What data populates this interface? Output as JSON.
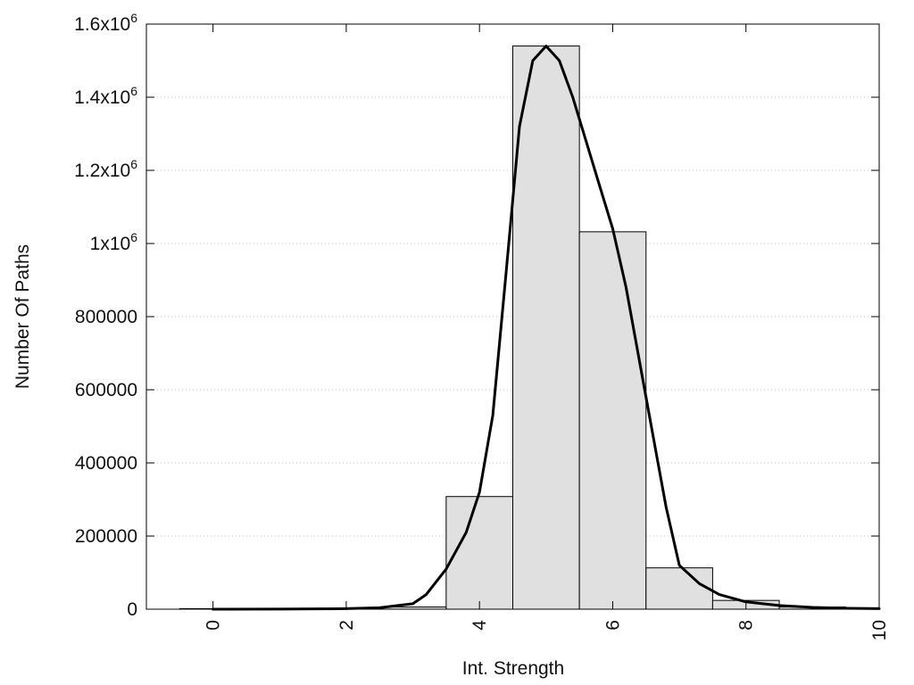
{
  "chart_data": {
    "type": "bar",
    "xlabel": "Int. Strength",
    "ylabel": "Number Of Paths",
    "xlim": [
      -1,
      10
    ],
    "ylim": [
      0,
      1600000
    ],
    "grid": true,
    "x_ticks": [
      {
        "value": 0,
        "label": "0"
      },
      {
        "value": 2,
        "label": "2"
      },
      {
        "value": 4,
        "label": "4"
      },
      {
        "value": 6,
        "label": "6"
      },
      {
        "value": 8,
        "label": "8"
      },
      {
        "value": 10,
        "label": "10"
      }
    ],
    "y_ticks": [
      {
        "value": 0,
        "label": "0"
      },
      {
        "value": 200000,
        "label": "200000"
      },
      {
        "value": 400000,
        "label": "400000"
      },
      {
        "value": 600000,
        "label": "600000"
      },
      {
        "value": 800000,
        "label": "800000"
      },
      {
        "value": 1000000,
        "label": "1x10",
        "sup": "6"
      },
      {
        "value": 1200000,
        "label": "1.2x10",
        "sup": "6"
      },
      {
        "value": 1400000,
        "label": "1.4x10",
        "sup": "6"
      },
      {
        "value": 1600000,
        "label": "1.6x10",
        "sup": "6"
      }
    ],
    "bars": {
      "x": [
        0,
        1,
        2,
        3,
        4,
        5,
        6,
        7,
        8,
        9
      ],
      "values": [
        1500,
        1500,
        2000,
        6000,
        308000,
        1540000,
        1032000,
        113000,
        24000,
        6000
      ],
      "fill": "#e0e0e0",
      "stroke": "#000000"
    },
    "curve": {
      "x": [
        0,
        1,
        2,
        2.5,
        3,
        3.2,
        3.5,
        3.8,
        4,
        4.2,
        4.4,
        4.6,
        4.8,
        5,
        5.2,
        5.4,
        5.6,
        5.8,
        6,
        6.2,
        6.4,
        6.6,
        6.8,
        7,
        7.3,
        7.6,
        8,
        8.5,
        9,
        9.5,
        10
      ],
      "y": [
        0,
        200,
        1500,
        4000,
        15000,
        40000,
        110000,
        210000,
        320000,
        530000,
        920000,
        1320000,
        1500000,
        1540000,
        1500000,
        1400000,
        1280000,
        1160000,
        1040000,
        880000,
        680000,
        480000,
        280000,
        120000,
        70000,
        40000,
        20000,
        10000,
        5000,
        2500,
        1500
      ],
      "color": "#000000"
    }
  }
}
